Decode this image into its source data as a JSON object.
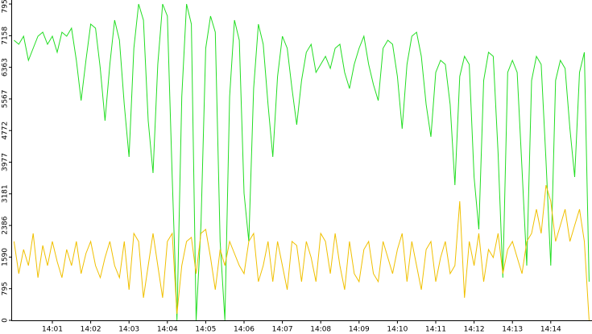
{
  "chart_data": {
    "type": "line",
    "categories": [
      null,
      null,
      null,
      null,
      null,
      null,
      null,
      null,
      "14:01",
      null,
      null,
      null,
      null,
      null,
      null,
      null,
      "14:02",
      null,
      null,
      null,
      null,
      null,
      null,
      null,
      "14:03",
      null,
      null,
      null,
      null,
      null,
      null,
      null,
      "14:04",
      null,
      null,
      null,
      null,
      null,
      null,
      null,
      "14:05",
      null,
      null,
      null,
      null,
      null,
      null,
      null,
      "14:06",
      null,
      null,
      null,
      null,
      null,
      null,
      null,
      "14:07",
      null,
      null,
      null,
      null,
      null,
      null,
      null,
      "14:08",
      null,
      null,
      null,
      null,
      null,
      null,
      null,
      "14:09",
      null,
      null,
      null,
      null,
      null,
      null,
      null,
      "14:10",
      null,
      null,
      null,
      null,
      null,
      null,
      null,
      "14:11",
      null,
      null,
      null,
      null,
      null,
      null,
      null,
      "14:12",
      null,
      null,
      null,
      null,
      null,
      null,
      null,
      "14:13",
      null,
      null,
      null,
      null,
      null,
      null,
      null,
      "14:14",
      null,
      null,
      null,
      null,
      null,
      null,
      null,
      null
    ],
    "series": [
      {
        "color": "#22dd22",
        "values": [
          7044,
          6942,
          7145,
          6538,
          6841,
          7145,
          7246,
          6942,
          7145,
          6740,
          7246,
          7145,
          7347,
          6538,
          5526,
          6538,
          7448,
          7347,
          6335,
          5020,
          6436,
          7550,
          7044,
          5424,
          4109,
          6841,
          7954,
          7550,
          5020,
          3704,
          6436,
          7954,
          7651,
          3603,
          0,
          5627,
          7954,
          7448,
          0,
          2388,
          6841,
          7651,
          7246,
          1984,
          0,
          5627,
          7550,
          7044,
          3198,
          1984,
          5829,
          7448,
          6942,
          5424,
          4109,
          6133,
          7145,
          6841,
          5829,
          4918,
          6032,
          6740,
          6942,
          6234,
          6436,
          6639,
          6335,
          6841,
          6942,
          6234,
          5829,
          6436,
          6841,
          7145,
          6436,
          5930,
          5526,
          6841,
          7044,
          6942,
          6133,
          4817,
          6436,
          7145,
          7246,
          6639,
          5424,
          4615,
          6234,
          6538,
          6436,
          5424,
          3400,
          6133,
          6639,
          6436,
          3603,
          2287,
          6032,
          6740,
          6639,
          4210,
          1073,
          6234,
          6538,
          6234,
          3805,
          1376,
          6032,
          6639,
          6436,
          4008,
          1376,
          6032,
          6538,
          6335,
          4817,
          3603,
          6234,
          6740,
          972
        ]
      },
      {
        "color": "#f0c000",
        "values": [
          1984,
          1174,
          1781,
          1376,
          2186,
          1073,
          1882,
          1376,
          1984,
          1478,
          1073,
          1781,
          1376,
          1984,
          1174,
          1680,
          1984,
          1376,
          1073,
          1579,
          1984,
          1376,
          1073,
          1984,
          769,
          2186,
          1984,
          567,
          1376,
          2186,
          1376,
          567,
          1984,
          2186,
          162,
          1376,
          1984,
          2085,
          1174,
          2186,
          2287,
          1579,
          769,
          1781,
          1376,
          1984,
          1680,
          1376,
          1174,
          1984,
          2186,
          972,
          1376,
          1984,
          972,
          1984,
          1376,
          769,
          1984,
          1882,
          972,
          1984,
          1579,
          972,
          2186,
          1984,
          1174,
          2186,
          1376,
          769,
          1984,
          1174,
          972,
          1781,
          1984,
          1174,
          972,
          1984,
          1579,
          1174,
          1781,
          2186,
          972,
          1984,
          1376,
          769,
          1781,
          1984,
          972,
          1579,
          1984,
          1174,
          1376,
          2996,
          567,
          1984,
          1376,
          2186,
          972,
          1781,
          1579,
          2186,
          1174,
          1781,
          1984,
          1579,
          1174,
          1984,
          2186,
          2793,
          2186,
          3400,
          2996,
          1984,
          2388,
          2793,
          1984,
          2388,
          2793,
          1984,
          0
        ]
      }
    ],
    "ylim": [
      0,
      7954
    ],
    "yticks": [
      0,
      795,
      1590,
      2386,
      3181,
      3977,
      4772,
      5567,
      6363,
      7158,
      7954
    ]
  }
}
